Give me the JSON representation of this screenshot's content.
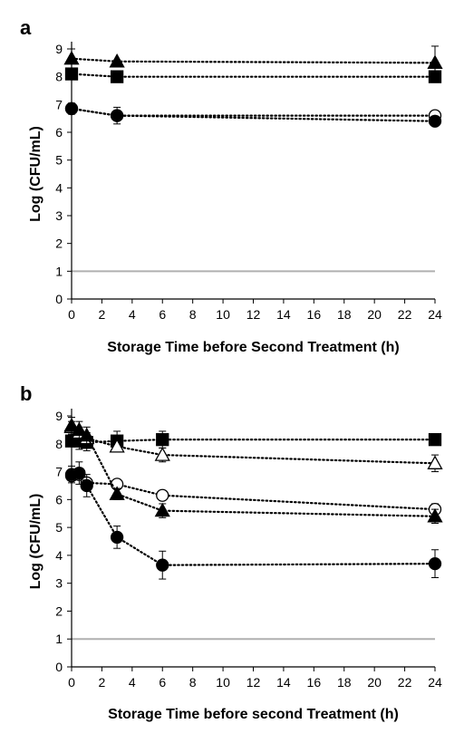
{
  "chart_data": [
    {
      "panel": "a",
      "type": "scatter",
      "xlabel": "Storage Time before Second Treatment (h)",
      "ylabel": "Log (CFU/mL)",
      "xlim": [
        0,
        24
      ],
      "ylim": [
        0,
        9
      ],
      "xticks": [
        0,
        2,
        4,
        6,
        8,
        10,
        12,
        14,
        16,
        18,
        20,
        22,
        24
      ],
      "yticks": [
        0,
        1,
        2,
        3,
        4,
        5,
        6,
        7,
        8,
        9
      ],
      "reference_line": 1,
      "grid": false,
      "series": [
        {
          "marker": "triangle",
          "filled": true,
          "x": [
            0,
            3,
            24
          ],
          "y": [
            8.65,
            8.55,
            8.5
          ],
          "err": [
            0.35,
            0,
            0.6
          ]
        },
        {
          "marker": "square",
          "filled": true,
          "x": [
            0,
            3,
            24
          ],
          "y": [
            8.1,
            8.0,
            8.0
          ],
          "err": [
            0.1,
            0,
            0.1
          ]
        },
        {
          "marker": "circle",
          "filled": false,
          "x": [
            0,
            3,
            24
          ],
          "y": [
            6.85,
            6.6,
            6.6
          ],
          "err": [
            0,
            0,
            0
          ]
        },
        {
          "marker": "circle",
          "filled": true,
          "x": [
            0,
            3,
            24
          ],
          "y": [
            6.85,
            6.6,
            6.4
          ],
          "err": [
            0.2,
            0.3,
            0.1
          ]
        }
      ]
    },
    {
      "panel": "b",
      "type": "scatter",
      "xlabel": "Storage Time before second Treatment (h)",
      "ylabel": "Log (CFU/mL)",
      "xlim": [
        0,
        24
      ],
      "ylim": [
        0,
        9
      ],
      "xticks": [
        0,
        2,
        4,
        6,
        8,
        10,
        12,
        14,
        16,
        18,
        20,
        22,
        24
      ],
      "yticks": [
        0,
        1,
        2,
        3,
        4,
        5,
        6,
        7,
        8,
        9
      ],
      "reference_line": 1,
      "grid": false,
      "series": [
        {
          "marker": "square",
          "filled": true,
          "x": [
            0,
            0.5,
            1,
            3,
            6,
            24
          ],
          "y": [
            8.1,
            8.1,
            8.05,
            8.1,
            8.15,
            8.15
          ],
          "err": [
            0.2,
            0.3,
            0.3,
            0.35,
            0.3,
            0.1
          ]
        },
        {
          "marker": "triangle",
          "filled": false,
          "x": [
            0,
            0.5,
            1,
            3,
            6,
            24
          ],
          "y": [
            8.6,
            8.4,
            8.2,
            7.9,
            7.6,
            7.3
          ],
          "err": [
            0.2,
            0.2,
            0.2,
            0.2,
            0.25,
            0.3
          ]
        },
        {
          "marker": "circle",
          "filled": false,
          "x": [
            0,
            0.5,
            1,
            3,
            6,
            24
          ],
          "y": [
            6.85,
            6.9,
            6.6,
            6.55,
            6.15,
            5.65
          ],
          "err": [
            0.1,
            0.1,
            0.1,
            0.1,
            0.1,
            0.2
          ]
        },
        {
          "marker": "triangle",
          "filled": true,
          "x": [
            0,
            0.5,
            1,
            3,
            6,
            24
          ],
          "y": [
            8.65,
            8.5,
            8.3,
            6.2,
            5.6,
            5.4
          ],
          "err": [
            0.3,
            0.3,
            0.3,
            0.2,
            0.25,
            0.25
          ]
        },
        {
          "marker": "circle",
          "filled": true,
          "x": [
            0,
            0.5,
            1,
            3,
            6,
            24
          ],
          "y": [
            6.9,
            6.95,
            6.5,
            4.65,
            3.65,
            3.7
          ],
          "err": [
            0.3,
            0.4,
            0.4,
            0.4,
            0.5,
            0.5
          ]
        }
      ]
    }
  ]
}
